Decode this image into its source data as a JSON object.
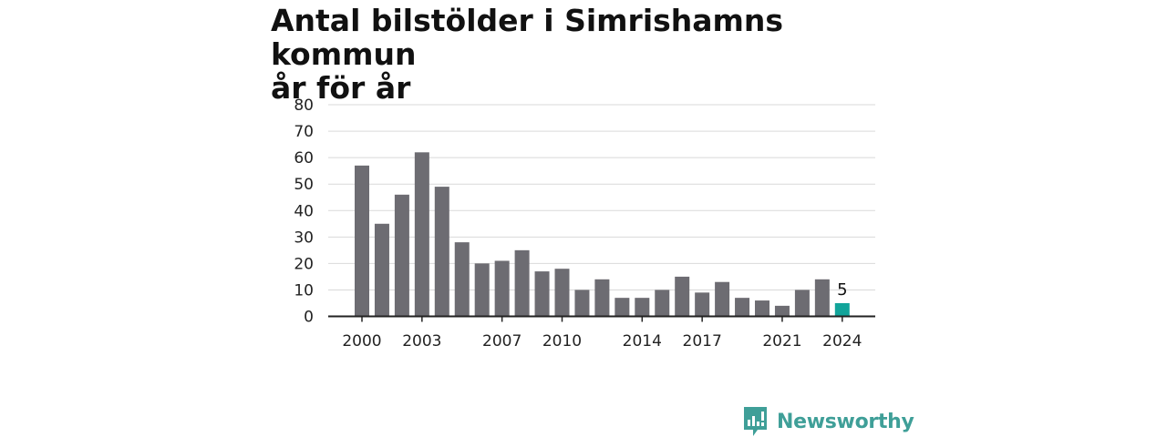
{
  "chart_data": {
    "type": "bar",
    "title_lines": [
      "Antal bilstölder i Simrishamns kommun",
      "år för år"
    ],
    "xlabel": "",
    "ylabel": "",
    "ylim": [
      0,
      80
    ],
    "yticks": [
      0,
      10,
      20,
      30,
      40,
      50,
      60,
      70,
      80
    ],
    "xticks": [
      2000,
      2003,
      2007,
      2010,
      2014,
      2017,
      2021,
      2024
    ],
    "grid": true,
    "categories": [
      2000,
      2001,
      2002,
      2003,
      2004,
      2005,
      2006,
      2007,
      2008,
      2009,
      2010,
      2011,
      2012,
      2013,
      2014,
      2015,
      2016,
      2017,
      2018,
      2019,
      2020,
      2021,
      2022,
      2023,
      2024
    ],
    "values": [
      57,
      35,
      46,
      62,
      49,
      28,
      20,
      21,
      25,
      17,
      18,
      10,
      14,
      7,
      7,
      10,
      15,
      9,
      13,
      7,
      6,
      4,
      10,
      14,
      5
    ],
    "bar_color": "#6d6c72",
    "highlight_color": "#12a49a",
    "highlight_category": 2024,
    "highlight_label": "5"
  },
  "brand": {
    "name": "Newsworthy",
    "icon": "newsworthy-logo-icon",
    "color": "#3f9f98"
  }
}
